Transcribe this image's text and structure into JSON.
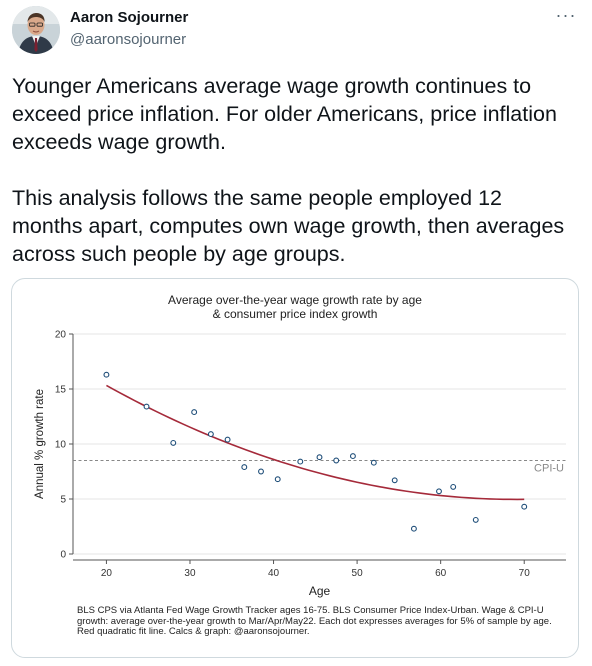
{
  "author": {
    "name": "Aaron Sojourner",
    "handle": "@aaronsojourner",
    "more_icon": "ellipsis-icon"
  },
  "tweet": {
    "paragraph1": "Younger Americans average wage growth continues to exceed price inflation. For older Americans, price inflation exceeds wage growth.",
    "paragraph2": "This analysis follows the same people employed 12 months apart, computes own wage growth, then averages across such people by age groups."
  },
  "chart_data": {
    "type": "scatter",
    "title_line1": "Average over-the-year wage growth rate by age",
    "title_line2": "& consumer price index growth",
    "xlabel": "Age",
    "ylabel": "Annual % growth rate",
    "xlim": [
      16,
      75
    ],
    "ylim": [
      0,
      20
    ],
    "xticks": [
      20,
      30,
      40,
      50,
      60,
      70
    ],
    "yticks": [
      0,
      5,
      10,
      15,
      20
    ],
    "grid": true,
    "series": [
      {
        "points": [
          [
            20,
            16.3
          ],
          [
            24.8,
            13.4
          ],
          [
            28,
            10.1
          ],
          [
            30.5,
            12.9
          ],
          [
            32.5,
            10.9
          ],
          [
            34.5,
            10.4
          ],
          [
            36.5,
            7.9
          ],
          [
            38.5,
            7.5
          ],
          [
            40.5,
            6.8
          ],
          [
            43.2,
            8.4
          ],
          [
            45.5,
            8.8
          ],
          [
            47.5,
            8.5
          ],
          [
            49.5,
            8.9
          ],
          [
            52,
            8.3
          ],
          [
            54.5,
            6.7
          ],
          [
            56.8,
            2.3
          ],
          [
            59.8,
            5.7
          ],
          [
            61.5,
            6.1
          ],
          [
            64.2,
            3.1
          ],
          [
            70,
            4.3
          ]
        ],
        "color": "#1f4e79"
      }
    ],
    "fit_line": {
      "type": "quadratic",
      "x_range": [
        20,
        70
      ],
      "coefficients": [
        25.5,
        -0.595,
        0.00431
      ],
      "color": "#a52a3a"
    },
    "reference_line": {
      "label": "CPI-U",
      "y": 8.5,
      "color": "#888888"
    },
    "caption": "BLS CPS via Atlanta Fed Wage Growth Tracker ages 16-75. BLS Consumer Price Index-Urban. Wage & CPI-U growth: average over-the-year growth to Mar/Apr/May22. Each dot expresses averages for 5% of sample by age. Red quadratic fit line. Calcs & graph: @aaronsojourner."
  }
}
